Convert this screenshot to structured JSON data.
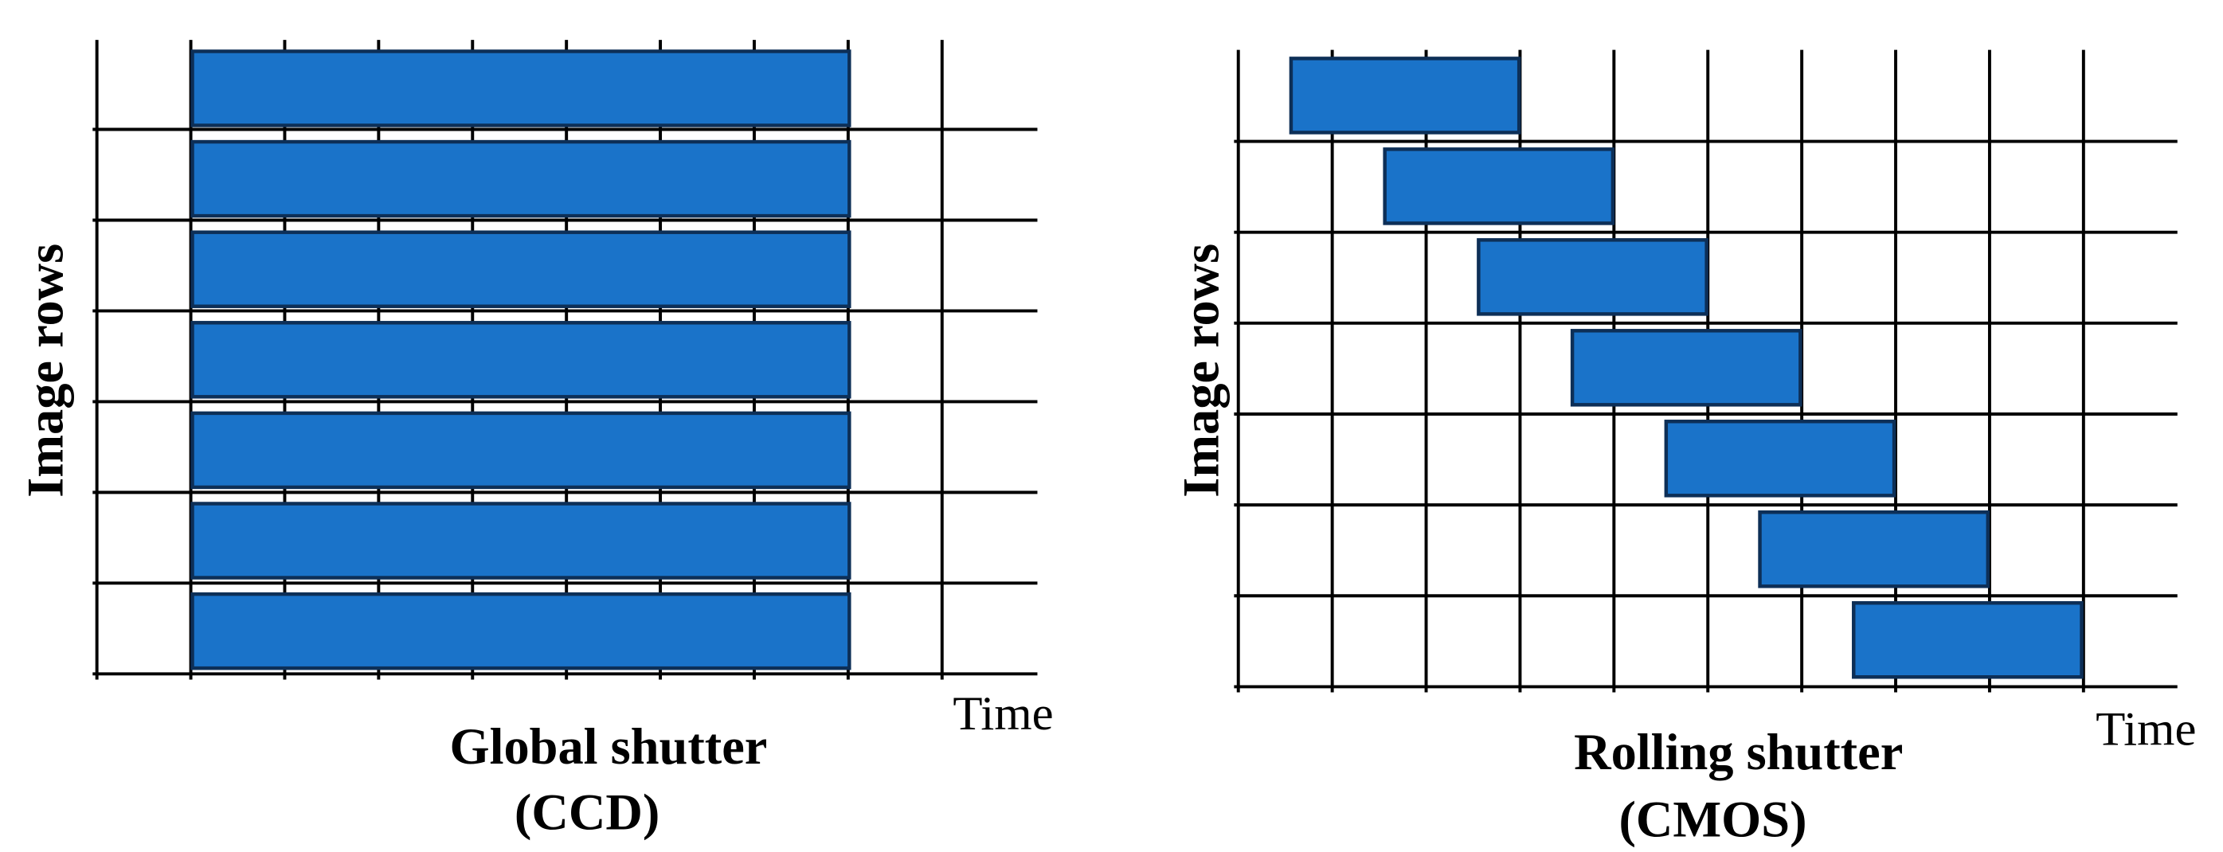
{
  "panels": [
    {
      "title": "Global shutter",
      "subtitle": "(CCD)",
      "y_label": "Image rows",
      "x_label": "Time"
    },
    {
      "title": "Rolling shutter",
      "subtitle": "(CMOS)",
      "y_label": "Image rows",
      "x_label": "Time"
    }
  ]
}
